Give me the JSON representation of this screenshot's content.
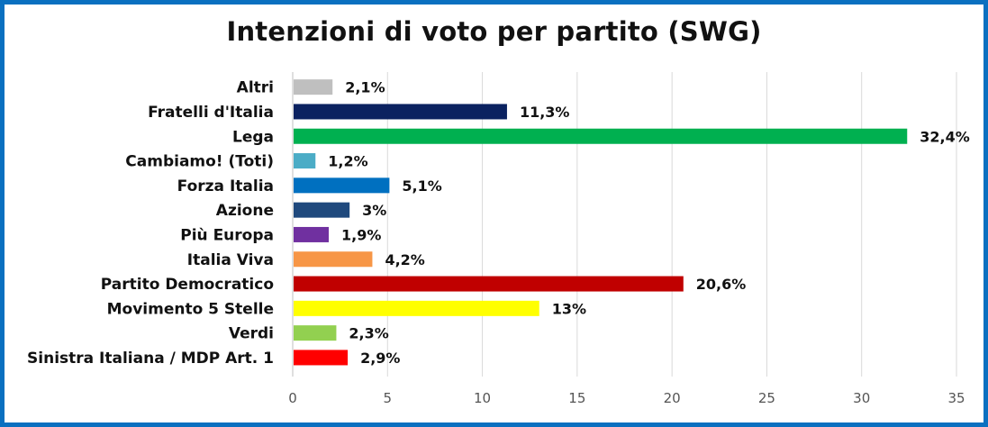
{
  "chart_data": {
    "type": "bar",
    "orientation": "horizontal",
    "title": "Intenzioni di voto per partito (SWG)",
    "xlabel": "",
    "ylabel": "",
    "xlim": [
      0,
      35
    ],
    "xticks": [
      0,
      5,
      10,
      15,
      20,
      25,
      30,
      35
    ],
    "xtick_labels": [
      "0",
      "5",
      "10",
      "15",
      "20",
      "25",
      "30",
      "35"
    ],
    "grid": "vertical",
    "legend": "none",
    "categories": [
      "Altri",
      "Fratelli d'Italia",
      "Lega",
      "Cambiamo! (Toti)",
      "Forza Italia",
      "Azione",
      "Più Europa",
      "Italia Viva",
      "Partito Democratico",
      "Movimento 5 Stelle",
      "Verdi",
      "Sinistra Italiana / MDP Art. 1"
    ],
    "values": [
      2.1,
      11.3,
      32.4,
      1.2,
      5.1,
      3,
      1.9,
      4.2,
      20.6,
      13,
      2.3,
      2.9
    ],
    "value_labels": [
      "2,1%",
      "11,3%",
      "32,4%",
      "1,2%",
      "5,1%",
      "3%",
      "1,9%",
      "4,2%",
      "20,6%",
      "13%",
      "2,3%",
      "2,9%"
    ],
    "colors": [
      "#BFBFBF",
      "#0B2260",
      "#00B050",
      "#4BACC6",
      "#0070C0",
      "#1F497D",
      "#7030A0",
      "#F79646",
      "#C00000",
      "#FFFF00",
      "#92D050",
      "#FF0000"
    ]
  },
  "frame": {
    "border_color": "#0A70C0"
  }
}
